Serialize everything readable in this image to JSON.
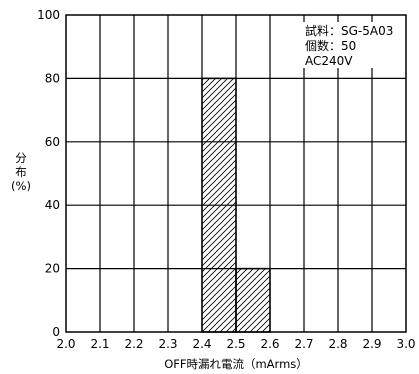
{
  "chart_data": {
    "type": "bar",
    "bins": [
      {
        "start": 2.4,
        "end": 2.5,
        "value": 80
      },
      {
        "start": 2.5,
        "end": 2.6,
        "value": 20
      }
    ],
    "xlim": [
      2.0,
      3.0
    ],
    "ylim": [
      0,
      100
    ],
    "xticks": [
      "2.0",
      "2.1",
      "2.2",
      "2.3",
      "2.4",
      "2.5",
      "2.6",
      "2.7",
      "2.8",
      "2.9",
      "3.0"
    ],
    "yticks": [
      "0",
      "20",
      "40",
      "60",
      "80",
      "100"
    ],
    "xlabel": "OFF時漏れ電流（mArms）",
    "ylabel": [
      "分",
      "布",
      "(%)"
    ],
    "annotations": [
      "試料：SG-5A03",
      "個数：50",
      "AC240V"
    ],
    "grid": true,
    "bar_fill": "hatched"
  }
}
